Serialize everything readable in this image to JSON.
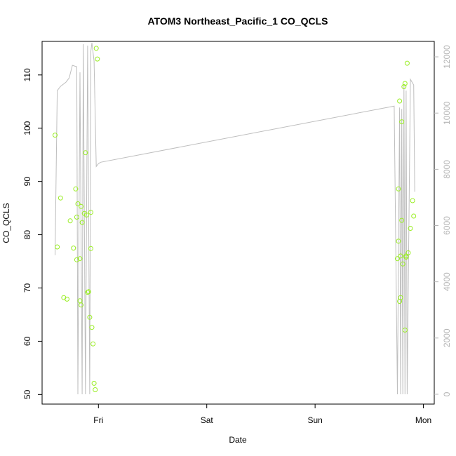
{
  "chart_data": {
    "type": "scatter",
    "title": "ATOM3 Northeast_Pacific_1 CO_QCLS",
    "xlabel": "Date",
    "ylabel": "CO_QCLS",
    "x_ticks": [
      "Fri",
      "Sat",
      "Sun",
      "Mon"
    ],
    "y_ticks": [
      50,
      60,
      70,
      80,
      90,
      100,
      110
    ],
    "y2_ticks": [
      0,
      2000,
      4000,
      6000,
      8000,
      10000,
      12000
    ],
    "ylim": [
      48.2,
      116.3
    ],
    "y2lim": [
      -350,
      12550
    ],
    "xlim_days": [
      -0.52,
      3.1
    ],
    "colors": {
      "points": "#99ee22",
      "line": "#bebebe",
      "axis": "#000000",
      "right_axis": "#b4b4b4"
    },
    "series": [
      {
        "type": "scatter",
        "x_days": [
          -0.4,
          -0.38,
          -0.35,
          -0.32,
          -0.29,
          -0.26,
          -0.23,
          -0.21,
          -0.2,
          -0.2,
          -0.19,
          -0.17,
          -0.17,
          -0.16,
          -0.16,
          -0.15,
          -0.13,
          -0.12,
          -0.11,
          -0.1,
          -0.09,
          -0.08,
          -0.07,
          -0.07,
          -0.06,
          -0.05,
          -0.04,
          -0.03,
          -0.02,
          -0.01,
          2.76,
          2.77,
          2.77,
          2.78,
          2.78,
          2.79,
          2.79,
          2.8,
          2.8,
          2.81,
          2.82,
          2.83,
          2.83,
          2.84,
          2.84,
          2.85,
          2.86,
          2.88,
          2.9,
          2.91
        ],
        "y": [
          98.7,
          77.7,
          86.9,
          68.2,
          67.9,
          82.6,
          77.5,
          88.6,
          75.3,
          83.3,
          85.8,
          75.5,
          67.6,
          85.3,
          66.8,
          82.3,
          84.0,
          95.4,
          83.7,
          69.2,
          69.3,
          64.5,
          77.4,
          84.2,
          62.6,
          59.5,
          52.1,
          50.9,
          115.0,
          113.0,
          75.5,
          78.8,
          88.6,
          105.1,
          67.5,
          68.2,
          76.0,
          101.2,
          82.7,
          74.5,
          107.8,
          108.4,
          62.1,
          75.8,
          76.0,
          112.2,
          76.6,
          81.2,
          86.4,
          83.5
        ]
      },
      {
        "type": "line",
        "axis": "right",
        "x_days": [
          -0.4,
          -0.38,
          -0.35,
          -0.3,
          -0.27,
          -0.24,
          -0.2,
          -0.19,
          -0.17,
          -0.15,
          -0.14,
          -0.12,
          -0.1,
          -0.08,
          -0.07,
          -0.06,
          -0.04,
          -0.02,
          0.0,
          0.02,
          2.73,
          2.76,
          2.78,
          2.79,
          2.8,
          2.81,
          2.82,
          2.83,
          2.84,
          2.85,
          2.88,
          2.91,
          2.92
        ],
        "y": [
          4950,
          10800,
          10950,
          11100,
          11250,
          11700,
          11650,
          0,
          11450,
          0,
          12450,
          0,
          12400,
          0,
          12200,
          12500,
          11850,
          8100,
          8200,
          8250,
          10250,
          0,
          10200,
          0,
          10150,
          0,
          11000,
          0,
          10800,
          0,
          11200,
          11000,
          7200
        ]
      }
    ]
  }
}
